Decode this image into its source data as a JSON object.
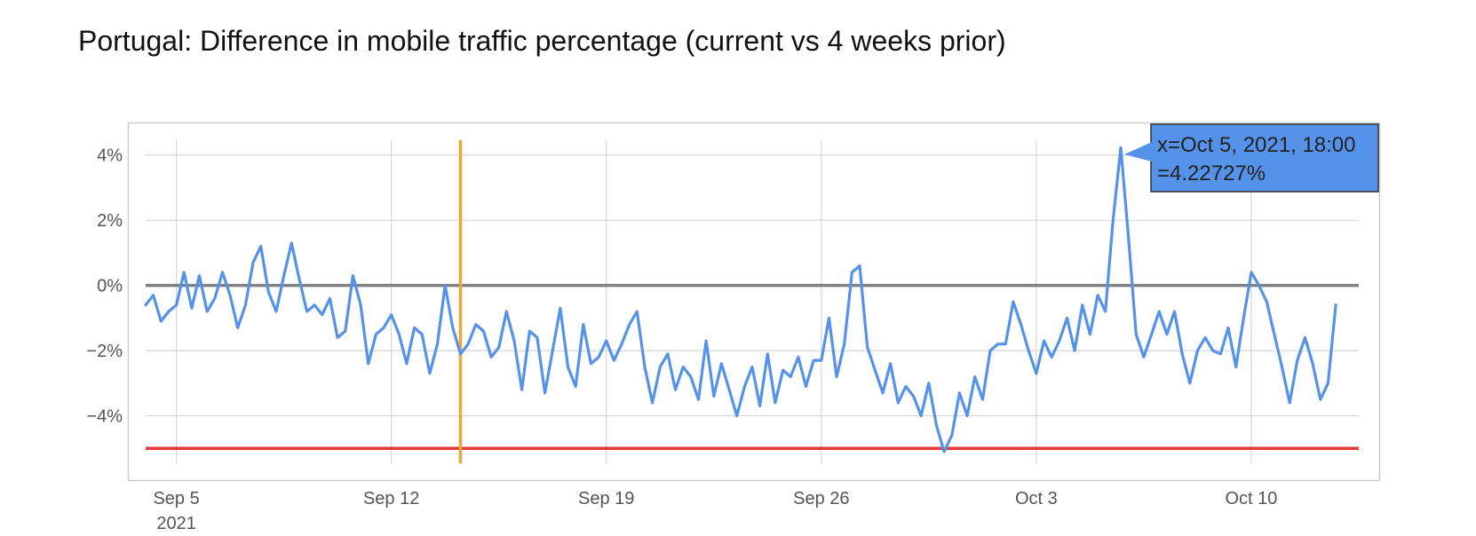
{
  "chart_data": {
    "type": "line",
    "title": "Portugal: Difference in mobile traffic percentage (current vs 4 weeks prior)",
    "xlabel": "",
    "ylabel": "",
    "x_range": [
      "2021-09-04",
      "2021-10-13T12:00"
    ],
    "ylim": [
      -6,
      5
    ],
    "y_ticks": [
      {
        "value": 4,
        "label": "4%"
      },
      {
        "value": 2,
        "label": "2%"
      },
      {
        "value": 0,
        "label": "0%"
      },
      {
        "value": -2,
        "label": "−2%"
      },
      {
        "value": -4,
        "label": "−4%"
      }
    ],
    "x_ticks": [
      {
        "value": "2021-09-05",
        "label": "Sep 5",
        "sublabel": "2021"
      },
      {
        "value": "2021-09-12",
        "label": "Sep 12"
      },
      {
        "value": "2021-09-19",
        "label": "Sep 19"
      },
      {
        "value": "2021-09-26",
        "label": "Sep 26"
      },
      {
        "value": "2021-10-03",
        "label": "Oct 3"
      },
      {
        "value": "2021-10-10",
        "label": "Oct 10"
      }
    ],
    "grid": true,
    "series": [
      {
        "color": "#5592ea",
        "points": [
          [
            "2021-09-04T00:00",
            -0.6
          ],
          [
            "2021-09-04T06:00",
            -0.3
          ],
          [
            "2021-09-04T12:00",
            -1.1
          ],
          [
            "2021-09-04T18:00",
            -0.8
          ],
          [
            "2021-09-05T00:00",
            -0.6
          ],
          [
            "2021-09-05T06:00",
            0.4
          ],
          [
            "2021-09-05T12:00",
            -0.7
          ],
          [
            "2021-09-05T18:00",
            0.3
          ],
          [
            "2021-09-06T00:00",
            -0.8
          ],
          [
            "2021-09-06T06:00",
            -0.4
          ],
          [
            "2021-09-06T12:00",
            0.4
          ],
          [
            "2021-09-06T18:00",
            -0.3
          ],
          [
            "2021-09-07T00:00",
            -1.3
          ],
          [
            "2021-09-07T06:00",
            -0.6
          ],
          [
            "2021-09-07T12:00",
            0.7
          ],
          [
            "2021-09-07T18:00",
            1.2
          ],
          [
            "2021-09-08T00:00",
            -0.2
          ],
          [
            "2021-09-08T06:00",
            -0.8
          ],
          [
            "2021-09-08T12:00",
            0.3
          ],
          [
            "2021-09-08T18:00",
            1.3
          ],
          [
            "2021-09-09T00:00",
            0.2
          ],
          [
            "2021-09-09T06:00",
            -0.8
          ],
          [
            "2021-09-09T12:00",
            -0.6
          ],
          [
            "2021-09-09T18:00",
            -0.9
          ],
          [
            "2021-09-10T00:00",
            -0.4
          ],
          [
            "2021-09-10T06:00",
            -1.6
          ],
          [
            "2021-09-10T12:00",
            -1.4
          ],
          [
            "2021-09-10T18:00",
            0.3
          ],
          [
            "2021-09-11T00:00",
            -0.6
          ],
          [
            "2021-09-11T06:00",
            -2.4
          ],
          [
            "2021-09-11T12:00",
            -1.5
          ],
          [
            "2021-09-11T18:00",
            -1.3
          ],
          [
            "2021-09-12T00:00",
            -0.9
          ],
          [
            "2021-09-12T06:00",
            -1.5
          ],
          [
            "2021-09-12T12:00",
            -2.4
          ],
          [
            "2021-09-12T18:00",
            -1.3
          ],
          [
            "2021-09-13T00:00",
            -1.5
          ],
          [
            "2021-09-13T06:00",
            -2.7
          ],
          [
            "2021-09-13T12:00",
            -1.8
          ],
          [
            "2021-09-13T18:00",
            0.0
          ],
          [
            "2021-09-14T00:00",
            -1.3
          ],
          [
            "2021-09-14T06:00",
            -2.1
          ],
          [
            "2021-09-14T12:00",
            -1.8
          ],
          [
            "2021-09-14T18:00",
            -1.2
          ],
          [
            "2021-09-15T00:00",
            -1.4
          ],
          [
            "2021-09-15T06:00",
            -2.2
          ],
          [
            "2021-09-15T12:00",
            -1.9
          ],
          [
            "2021-09-15T18:00",
            -0.8
          ],
          [
            "2021-09-16T00:00",
            -1.7
          ],
          [
            "2021-09-16T06:00",
            -3.2
          ],
          [
            "2021-09-16T12:00",
            -1.4
          ],
          [
            "2021-09-16T18:00",
            -1.6
          ],
          [
            "2021-09-17T00:00",
            -3.3
          ],
          [
            "2021-09-17T06:00",
            -2.0
          ],
          [
            "2021-09-17T12:00",
            -0.7
          ],
          [
            "2021-09-17T18:00",
            -2.5
          ],
          [
            "2021-09-18T00:00",
            -3.1
          ],
          [
            "2021-09-18T06:00",
            -1.2
          ],
          [
            "2021-09-18T12:00",
            -2.4
          ],
          [
            "2021-09-18T18:00",
            -2.2
          ],
          [
            "2021-09-19T00:00",
            -1.7
          ],
          [
            "2021-09-19T06:00",
            -2.3
          ],
          [
            "2021-09-19T12:00",
            -1.8
          ],
          [
            "2021-09-19T18:00",
            -1.2
          ],
          [
            "2021-09-20T00:00",
            -0.8
          ],
          [
            "2021-09-20T06:00",
            -2.5
          ],
          [
            "2021-09-20T12:00",
            -3.6
          ],
          [
            "2021-09-20T18:00",
            -2.5
          ],
          [
            "2021-09-21T00:00",
            -2.1
          ],
          [
            "2021-09-21T06:00",
            -3.2
          ],
          [
            "2021-09-21T12:00",
            -2.5
          ],
          [
            "2021-09-21T18:00",
            -2.8
          ],
          [
            "2021-09-22T00:00",
            -3.5
          ],
          [
            "2021-09-22T06:00",
            -1.7
          ],
          [
            "2021-09-22T12:00",
            -3.4
          ],
          [
            "2021-09-22T18:00",
            -2.4
          ],
          [
            "2021-09-23T00:00",
            -3.2
          ],
          [
            "2021-09-23T06:00",
            -4.0
          ],
          [
            "2021-09-23T12:00",
            -3.1
          ],
          [
            "2021-09-23T18:00",
            -2.5
          ],
          [
            "2021-09-24T00:00",
            -3.7
          ],
          [
            "2021-09-24T06:00",
            -2.1
          ],
          [
            "2021-09-24T12:00",
            -3.6
          ],
          [
            "2021-09-24T18:00",
            -2.6
          ],
          [
            "2021-09-25T00:00",
            -2.8
          ],
          [
            "2021-09-25T06:00",
            -2.2
          ],
          [
            "2021-09-25T12:00",
            -3.1
          ],
          [
            "2021-09-25T18:00",
            -2.3
          ],
          [
            "2021-09-26T00:00",
            -2.3
          ],
          [
            "2021-09-26T06:00",
            -1.0
          ],
          [
            "2021-09-26T12:00",
            -2.8
          ],
          [
            "2021-09-26T18:00",
            -1.8
          ],
          [
            "2021-09-27T00:00",
            0.4
          ],
          [
            "2021-09-27T06:00",
            0.6
          ],
          [
            "2021-09-27T12:00",
            -1.9
          ],
          [
            "2021-09-27T18:00",
            -2.6
          ],
          [
            "2021-09-28T00:00",
            -3.3
          ],
          [
            "2021-09-28T06:00",
            -2.4
          ],
          [
            "2021-09-28T12:00",
            -3.6
          ],
          [
            "2021-09-28T18:00",
            -3.1
          ],
          [
            "2021-09-29T00:00",
            -3.4
          ],
          [
            "2021-09-29T06:00",
            -4.0
          ],
          [
            "2021-09-29T12:00",
            -3.0
          ],
          [
            "2021-09-29T18:00",
            -4.3
          ],
          [
            "2021-09-30T00:00",
            -5.1
          ],
          [
            "2021-09-30T06:00",
            -4.6
          ],
          [
            "2021-09-30T12:00",
            -3.3
          ],
          [
            "2021-09-30T18:00",
            -4.0
          ],
          [
            "2021-10-01T00:00",
            -2.8
          ],
          [
            "2021-10-01T06:00",
            -3.5
          ],
          [
            "2021-10-01T12:00",
            -2.0
          ],
          [
            "2021-10-01T18:00",
            -1.8
          ],
          [
            "2021-10-02T00:00",
            -1.8
          ],
          [
            "2021-10-02T06:00",
            -0.5
          ],
          [
            "2021-10-02T12:00",
            -1.2
          ],
          [
            "2021-10-02T18:00",
            -2.0
          ],
          [
            "2021-10-03T00:00",
            -2.7
          ],
          [
            "2021-10-03T06:00",
            -1.7
          ],
          [
            "2021-10-03T12:00",
            -2.2
          ],
          [
            "2021-10-03T18:00",
            -1.7
          ],
          [
            "2021-10-04T00:00",
            -1.0
          ],
          [
            "2021-10-04T06:00",
            -2.0
          ],
          [
            "2021-10-04T12:00",
            -0.6
          ],
          [
            "2021-10-04T18:00",
            -1.5
          ],
          [
            "2021-10-05T00:00",
            -0.3
          ],
          [
            "2021-10-05T06:00",
            -0.8
          ],
          [
            "2021-10-05T12:00",
            2.0
          ],
          [
            "2021-10-05T18:00",
            4.22727
          ],
          [
            "2021-10-06T00:00",
            1.5
          ],
          [
            "2021-10-06T06:00",
            -1.5
          ],
          [
            "2021-10-06T12:00",
            -2.2
          ],
          [
            "2021-10-06T18:00",
            -1.5
          ],
          [
            "2021-10-07T00:00",
            -0.8
          ],
          [
            "2021-10-07T06:00",
            -1.5
          ],
          [
            "2021-10-07T12:00",
            -0.8
          ],
          [
            "2021-10-07T18:00",
            -2.1
          ],
          [
            "2021-10-08T00:00",
            -3.0
          ],
          [
            "2021-10-08T06:00",
            -2.0
          ],
          [
            "2021-10-08T12:00",
            -1.6
          ],
          [
            "2021-10-08T18:00",
            -2.0
          ],
          [
            "2021-10-09T00:00",
            -2.1
          ],
          [
            "2021-10-09T06:00",
            -1.3
          ],
          [
            "2021-10-09T12:00",
            -2.5
          ],
          [
            "2021-10-09T18:00",
            -1.0
          ],
          [
            "2021-10-10T00:00",
            0.4
          ],
          [
            "2021-10-10T06:00",
            0.0
          ],
          [
            "2021-10-10T12:00",
            -0.5
          ],
          [
            "2021-10-10T18:00",
            -1.5
          ],
          [
            "2021-10-11T00:00",
            -2.5
          ],
          [
            "2021-10-11T06:00",
            -3.6
          ],
          [
            "2021-10-11T12:00",
            -2.3
          ],
          [
            "2021-10-11T18:00",
            -1.6
          ],
          [
            "2021-10-12T00:00",
            -2.4
          ],
          [
            "2021-10-12T06:00",
            -3.5
          ],
          [
            "2021-10-12T12:00",
            -3.0
          ],
          [
            "2021-10-12T18:00",
            -0.6
          ]
        ]
      }
    ],
    "reference_lines": [
      {
        "axis": "y",
        "value": 0,
        "color": "#808080"
      },
      {
        "axis": "y",
        "value": -5,
        "color": "#e53935"
      },
      {
        "axis": "x",
        "value": "2021-09-14T06:00",
        "color": "#f0a53c"
      }
    ],
    "tooltip": {
      "x_text": "x=Oct 5, 2021, 18:00",
      "y_text": "=4.22727%",
      "background": "#5592ea",
      "point": "2021-10-05T18:00"
    }
  }
}
